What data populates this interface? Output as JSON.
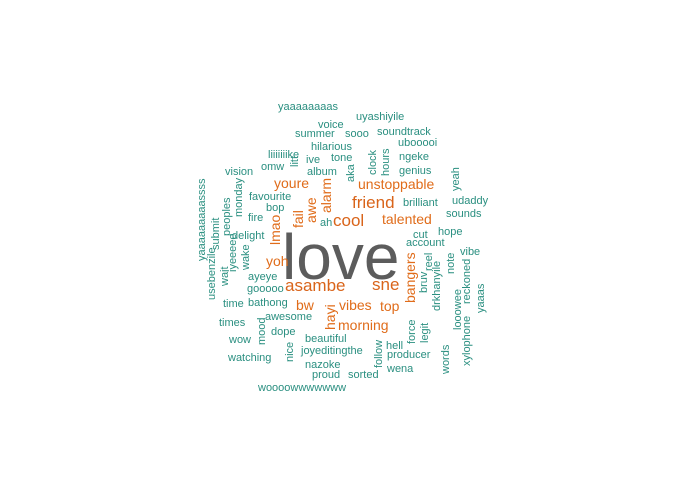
{
  "word_cloud": {
    "colors": {
      "small": "#2a8f80",
      "medium": "#e06c1a",
      "large": "#d9641a",
      "largest": "#5c5c5c"
    },
    "words": {
      "yaaaaaaaas": "yaaaaaaaas",
      "uyashiyile": "uyashiyile",
      "voice": "voice",
      "summer": "summer",
      "sooo": "sooo",
      "soundtrack": "soundtrack",
      "hilarious": "hilarious",
      "ubooooi": "ubooooi",
      "liiiiiiike": "liiiiiiike",
      "ive": "ive",
      "tone": "tone",
      "ngeke": "ngeke",
      "omw": "omw",
      "album": "album",
      "genius": "genius",
      "vision": "vision",
      "unstoppable": "unstoppable",
      "youre": "youre",
      "favourite": "favourite",
      "friend": "friend",
      "brilliant": "brilliant",
      "udaddy": "udaddy",
      "bop": "bop",
      "sounds": "sounds",
      "fire": "fire",
      "cool": "cool",
      "talented": "talented",
      "ah": "ah",
      "hope": "hope",
      "delight": "delight",
      "cut": "cut",
      "account": "account",
      "love": "love",
      "vibe": "vibe",
      "yoh": "yoh",
      "ayeye": "ayeye",
      "asambe": "asambe",
      "sne": "sne",
      "gooooo": "gooooo",
      "bathong": "bathong",
      "time": "time",
      "bw": "bw",
      "vibes": "vibes",
      "top": "top",
      "awesome": "awesome",
      "times": "times",
      "morning": "morning",
      "dope": "dope",
      "wow": "wow",
      "beautiful": "beautiful",
      "hell": "hell",
      "joyeditingthe": "joyeditingthe",
      "producer": "producer",
      "watching": "watching",
      "nazoke": "nazoke",
      "wena": "wena",
      "proud": "proud",
      "sorted": "sorted",
      "woooowwwwwww": "woooowwwwwww",
      "yaaaaaaaaassss": "yaaaaaaaaassss",
      "submit": "submit",
      "peoples": "peoples",
      "monday": "monday",
      "iyeeeee": "iyeeeee",
      "wait": "wait",
      "usebenzile": "usebenzile",
      "wake": "wake",
      "lmao": "lmao",
      "fail": "fail",
      "awe": "awe",
      "alarm": "alarm",
      "litt": "litt",
      "aka": "aka",
      "clock": "clock",
      "hours": "hours",
      "bangers": "bangers",
      "reel": "reel",
      "bruv": "bruv",
      "drkhanyile": "drkhanyile",
      "note": "note",
      "reckoned": "reckoned",
      "yeah": "yeah",
      "yaaas": "yaaas",
      "looowee": "looowee",
      "xylophone": "xylophone",
      "words": "words",
      "legit": "legit",
      "force": "force",
      "follow": "follow",
      "hayi": "hayi",
      "mood": "mood",
      "nice": "nice"
    }
  }
}
